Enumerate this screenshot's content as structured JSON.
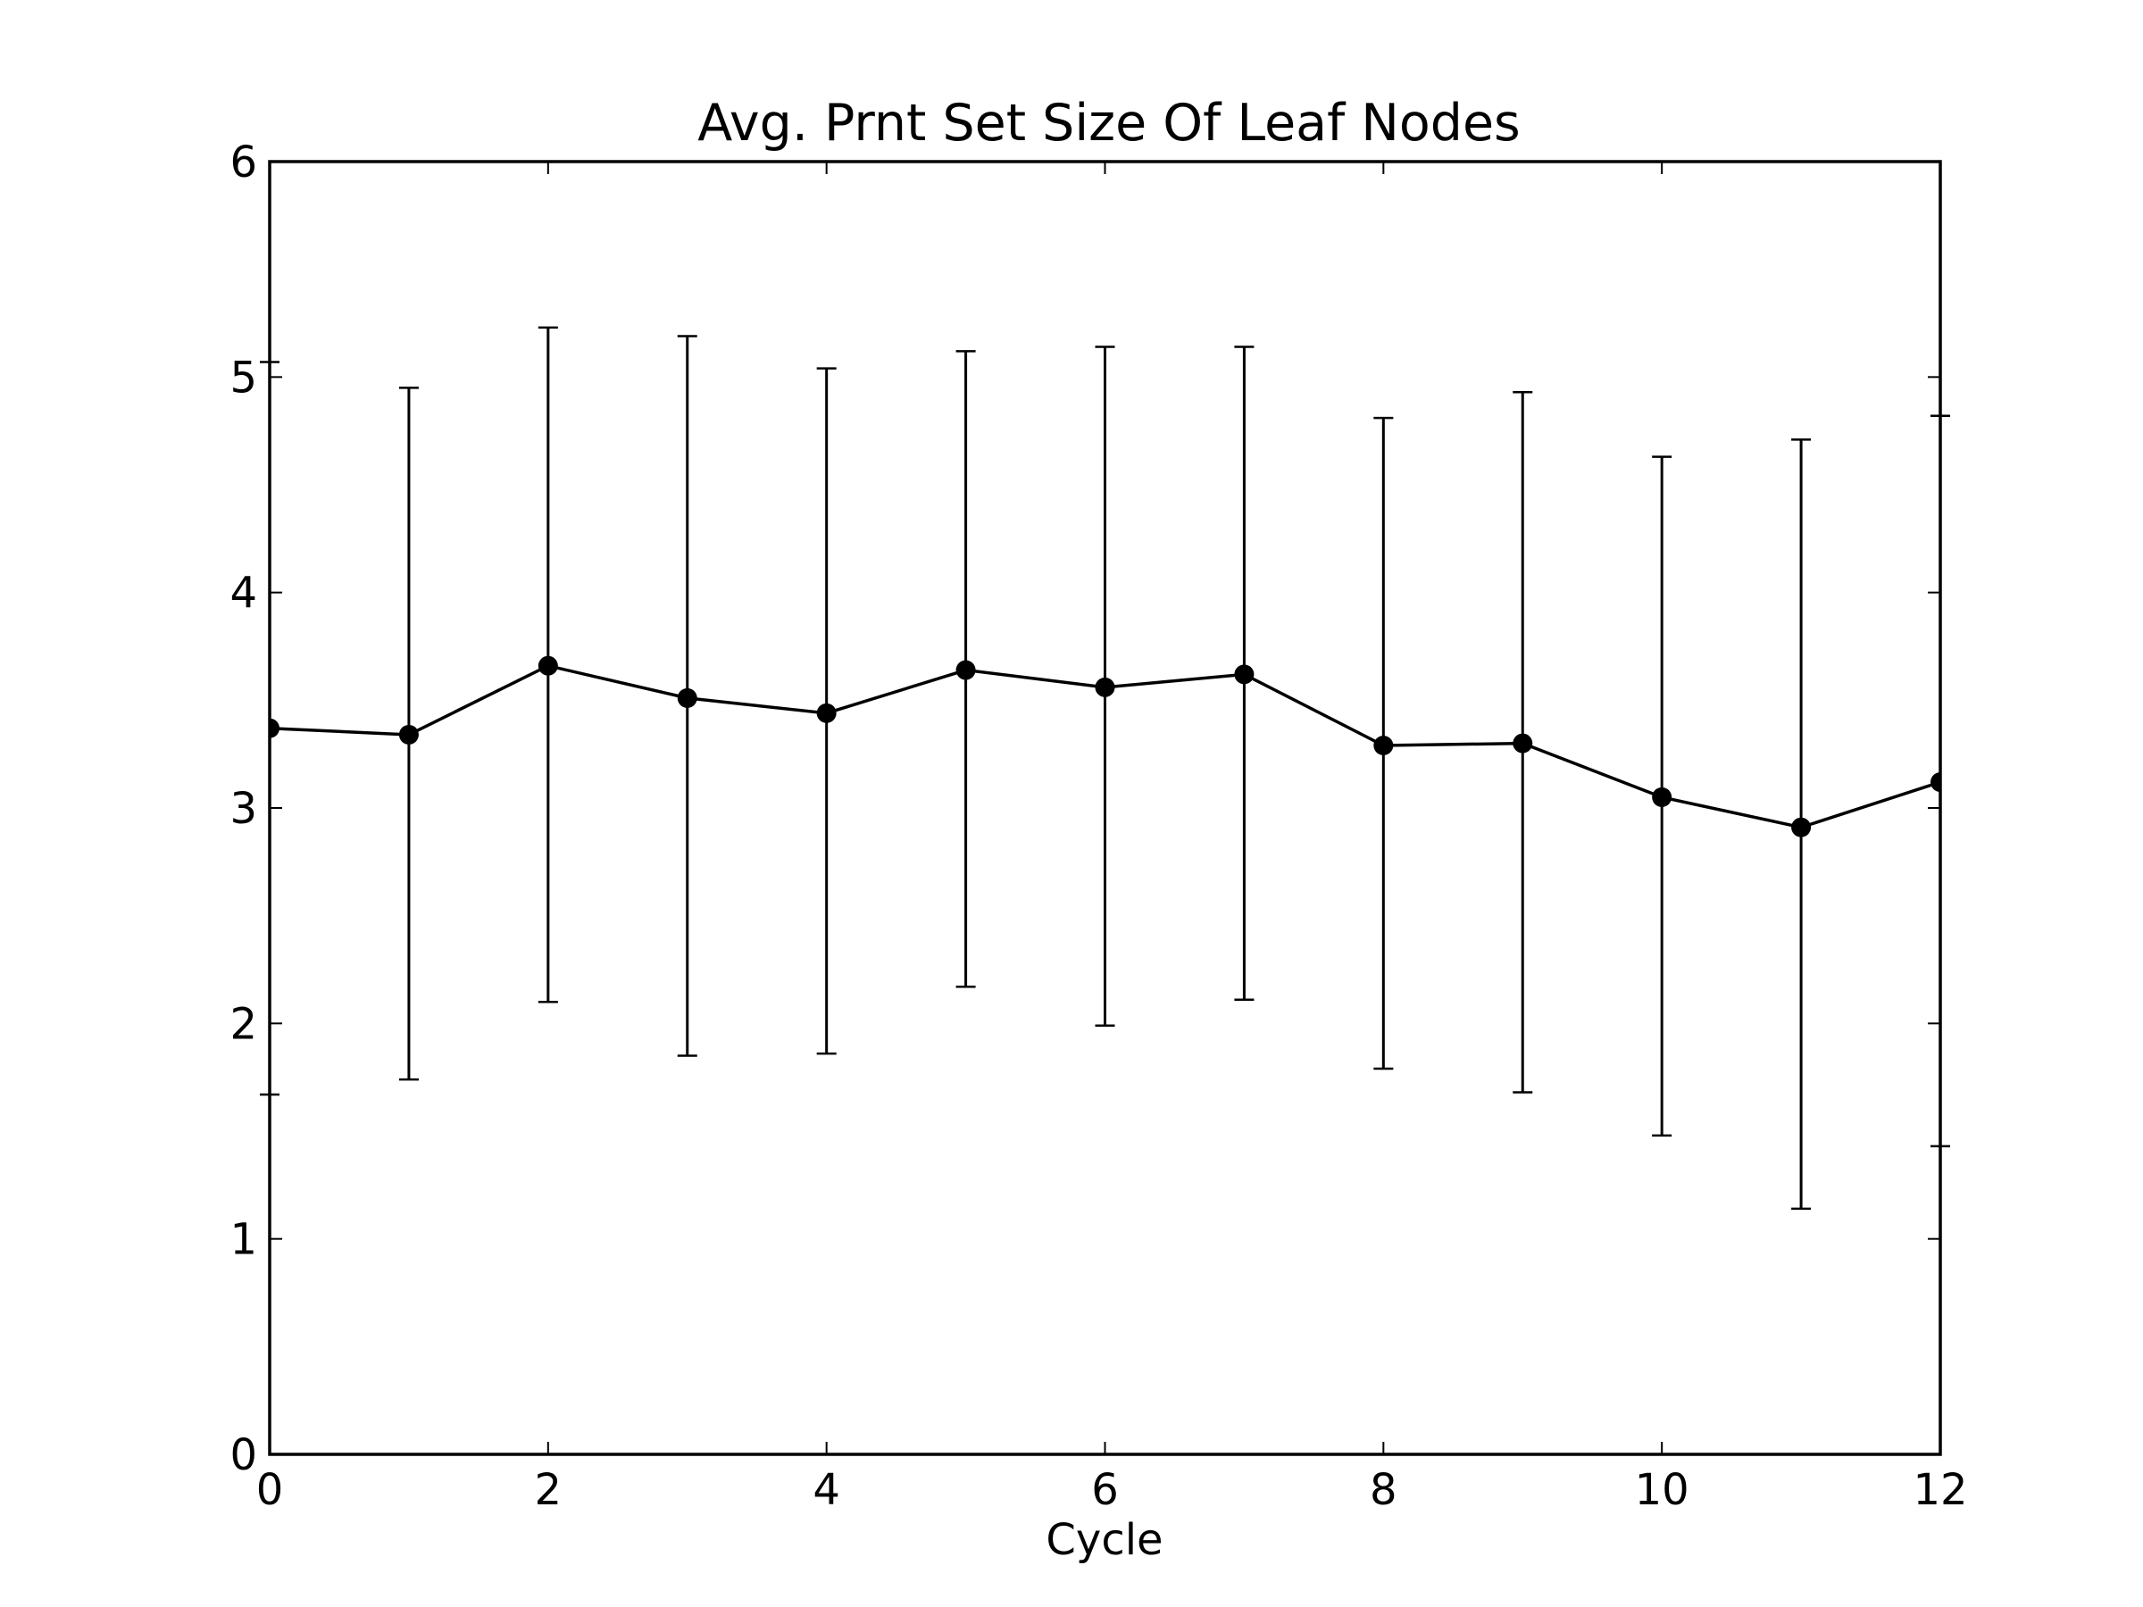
{
  "chart_data": {
    "type": "line",
    "title": "Avg. Prnt Set Size Of Leaf Nodes",
    "xlabel": "Cycle",
    "ylabel": "",
    "xlim": [
      0,
      12
    ],
    "ylim": [
      0,
      6
    ],
    "xticks": [
      0,
      2,
      4,
      6,
      8,
      10,
      12
    ],
    "yticks": [
      0,
      1,
      2,
      3,
      4,
      5,
      6
    ],
    "grid": false,
    "legend": false,
    "line_color": "#000000",
    "marker": "circle",
    "error_bars": true,
    "series": [
      {
        "x": [
          0,
          1,
          2,
          3,
          4,
          5,
          6,
          7,
          8,
          9,
          10,
          11,
          12
        ],
        "y": [
          3.37,
          3.34,
          3.66,
          3.51,
          3.44,
          3.64,
          3.56,
          3.62,
          3.29,
          3.3,
          3.05,
          2.91,
          3.12
        ],
        "err_low": [
          1.67,
          1.74,
          2.1,
          1.85,
          1.86,
          2.17,
          1.99,
          2.11,
          1.79,
          1.68,
          1.48,
          1.14,
          1.43
        ],
        "err_high": [
          5.07,
          4.95,
          5.23,
          5.19,
          5.04,
          5.12,
          5.14,
          5.14,
          4.81,
          4.93,
          4.63,
          4.71,
          4.82
        ]
      }
    ]
  }
}
